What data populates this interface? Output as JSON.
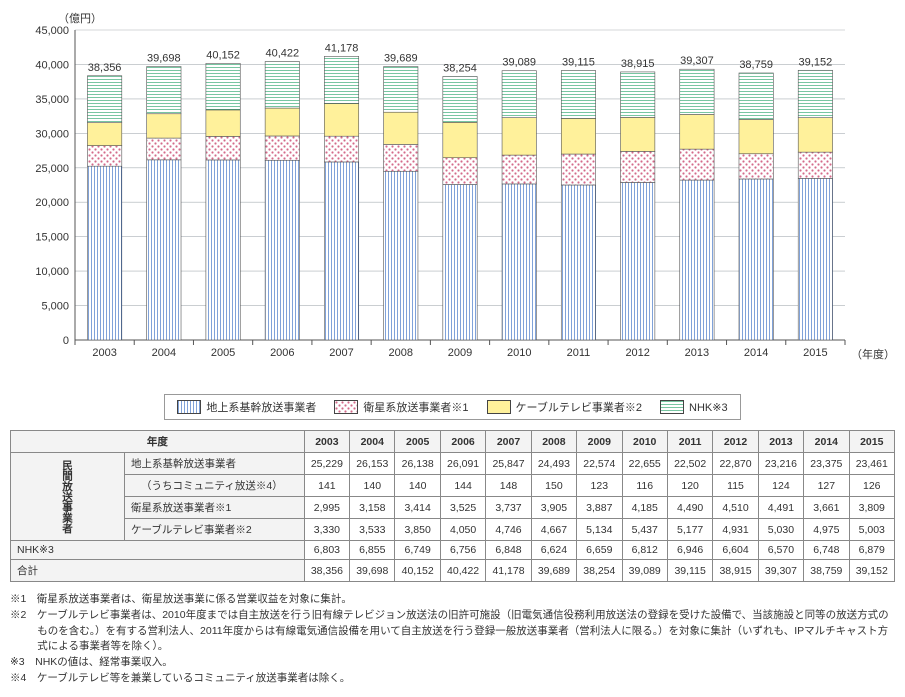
{
  "chart": {
    "type": "stacked-bar",
    "unit_label": "（億円）",
    "x_unit_label": "（年度）",
    "ylim": [
      0,
      45000
    ],
    "ytick_step": 5000,
    "yticks": [
      "0",
      "5,000",
      "10,000",
      "15,000",
      "20,000",
      "25,000",
      "30,000",
      "35,000",
      "40,000",
      "45,000"
    ],
    "grid_color": "#aab0b6",
    "axis_color": "#555",
    "background_color": "#ffffff",
    "bar_width_ratio": 0.58,
    "years": [
      "2003",
      "2004",
      "2005",
      "2006",
      "2007",
      "2008",
      "2009",
      "2010",
      "2011",
      "2012",
      "2013",
      "2014",
      "2015"
    ],
    "series": [
      {
        "key": "terrestrial",
        "label": "地上系基幹放送事業者",
        "fill": "#ffffff",
        "pattern": "vlines",
        "pattern_color": "#4a7bc9"
      },
      {
        "key": "satellite",
        "label": "衛星系放送事業者※1",
        "fill": "#ffffff",
        "pattern": "dots",
        "pattern_color": "#d46a8a"
      },
      {
        "key": "cable",
        "label": "ケーブルテレビ事業者※2",
        "fill": "#fff19b",
        "pattern": "none",
        "pattern_color": "#e3d05a"
      },
      {
        "key": "nhk",
        "label": "NHK※3",
        "fill": "#ffffff",
        "pattern": "hlines",
        "pattern_color": "#3eae7a"
      }
    ],
    "totals": [
      "38,356",
      "39,698",
      "40,152",
      "40,422",
      "41,178",
      "39,689",
      "38,254",
      "39,089",
      "39,115",
      "38,915",
      "39,307",
      "38,759",
      "39,152"
    ],
    "data": {
      "terrestrial": [
        25229,
        26153,
        26138,
        26091,
        25847,
        24493,
        22574,
        22655,
        22502,
        22870,
        23216,
        23375,
        23461
      ],
      "satellite": [
        2995,
        3158,
        3414,
        3525,
        3737,
        3905,
        3887,
        4185,
        4490,
        4510,
        4491,
        3661,
        3809
      ],
      "cable": [
        3330,
        3533,
        3850,
        4050,
        4746,
        4667,
        5134,
        5437,
        5177,
        4931,
        5030,
        4975,
        5003
      ],
      "nhk": [
        6803,
        6855,
        6749,
        6756,
        6848,
        6624,
        6659,
        6812,
        6946,
        6604,
        6570,
        6748,
        6879
      ]
    },
    "label_fontsize": 11,
    "total_label_fontsize": 11
  },
  "table": {
    "header_year": "年度",
    "vheader": "民間放送事業者",
    "rows": [
      {
        "label": "地上系基幹放送事業者",
        "values": [
          "25,229",
          "26,153",
          "26,138",
          "26,091",
          "25,847",
          "24,493",
          "22,574",
          "22,655",
          "22,502",
          "22,870",
          "23,216",
          "23,375",
          "23,461"
        ]
      },
      {
        "label": "（うちコミュニティ放送※4）",
        "values": [
          "141",
          "140",
          "140",
          "144",
          "148",
          "150",
          "123",
          "116",
          "120",
          "115",
          "124",
          "127",
          "126"
        ],
        "indent": true
      },
      {
        "label": "衛星系放送事業者※1",
        "values": [
          "2,995",
          "3,158",
          "3,414",
          "3,525",
          "3,737",
          "3,905",
          "3,887",
          "4,185",
          "4,490",
          "4,510",
          "4,491",
          "3,661",
          "3,809"
        ]
      },
      {
        "label": "ケーブルテレビ事業者※2",
        "values": [
          "3,330",
          "3,533",
          "3,850",
          "4,050",
          "4,746",
          "4,667",
          "5,134",
          "5,437",
          "5,177",
          "4,931",
          "5,030",
          "4,975",
          "5,003"
        ]
      }
    ],
    "nhk_row": {
      "label": "NHK※3",
      "values": [
        "6,803",
        "6,855",
        "6,749",
        "6,756",
        "6,848",
        "6,624",
        "6,659",
        "6,812",
        "6,946",
        "6,604",
        "6,570",
        "6,748",
        "6,879"
      ]
    },
    "total_row": {
      "label": "合計",
      "values": [
        "38,356",
        "39,698",
        "40,152",
        "40,422",
        "41,178",
        "39,689",
        "38,254",
        "39,089",
        "39,115",
        "38,915",
        "39,307",
        "38,759",
        "39,152"
      ]
    }
  },
  "notes": {
    "n1": "※1　衛星系放送事業者は、衛星放送事業に係る営業収益を対象に集計。",
    "n2": "※2　ケーブルテレビ事業者は、2010年度までは自主放送を行う旧有線テレビジョン放送法の旧許可施設（旧電気通信役務利用放送法の登録を受けた設備で、当該施設と同等の放送方式のものを含む。）を有する営利法人、2011年度からは有線電気通信設備を用いて自主放送を行う登録一般放送事業者（営利法人に限る。）を対象に集計（いずれも、IPマルチキャスト方式による事業者等を除く）。",
    "n3": "※3　NHKの値は、経常事業収入。",
    "n4": "※4　ケーブルテレビ等を兼業しているコミュニティ放送事業者は除く。"
  }
}
